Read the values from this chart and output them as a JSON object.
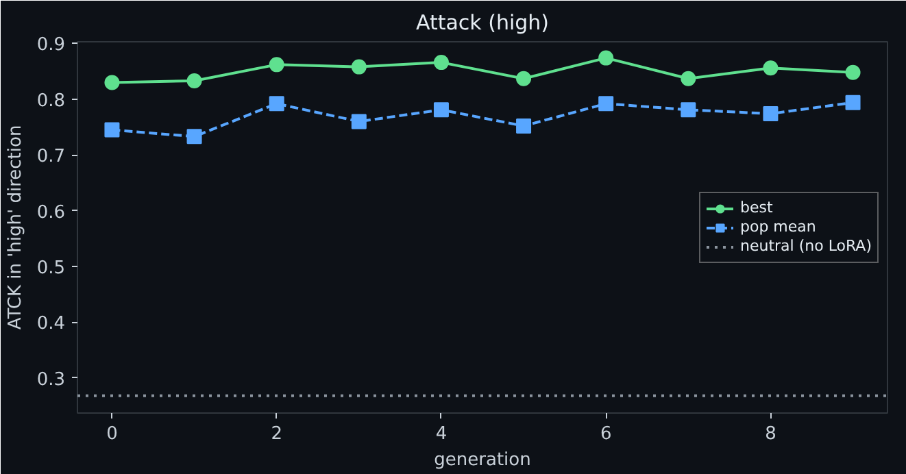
{
  "chart_data": {
    "type": "line",
    "title": "Attack (high)",
    "xlabel": "generation",
    "ylabel": "ATCK in 'high' direction",
    "x": [
      0,
      1,
      2,
      3,
      4,
      5,
      6,
      7,
      8,
      9
    ],
    "series": [
      {
        "name": "best",
        "color": "#5fe08f",
        "marker": "circle",
        "line_style": "solid",
        "values": [
          0.83,
          0.833,
          0.862,
          0.858,
          0.866,
          0.837,
          0.874,
          0.837,
          0.856,
          0.848
        ]
      },
      {
        "name": "pop mean",
        "color": "#58a6ff",
        "marker": "square",
        "line_style": "dashed",
        "values": [
          0.745,
          0.733,
          0.792,
          0.76,
          0.781,
          0.752,
          0.792,
          0.781,
          0.774,
          0.794
        ]
      }
    ],
    "ref_lines": [
      {
        "axis": "y",
        "value": 0.268,
        "label": "neutral (no LoRA)",
        "color": "#8b949e",
        "line_style": "dotted"
      }
    ],
    "xlim": [
      -0.42,
      9.42
    ],
    "ylim": [
      0.237,
      0.903
    ],
    "xticks": [
      0,
      2,
      4,
      6,
      8
    ],
    "yticks": [
      0.3,
      0.4,
      0.5,
      0.6,
      0.7,
      0.8,
      0.9
    ],
    "grid": false,
    "legend": "right"
  }
}
